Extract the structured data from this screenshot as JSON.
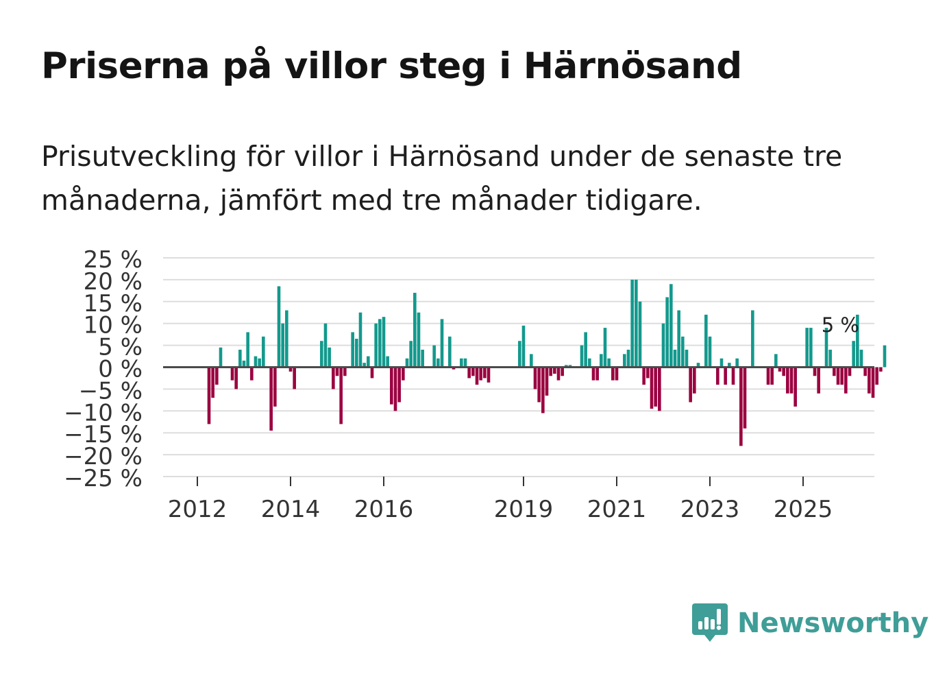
{
  "title": "Priserna på villor steg i Härnösand",
  "subtitle": "Prisutveckling för villor i Härnösand under de senaste tre månaderna, jämfört med tre månader tidigare.",
  "brand": {
    "name": "Newsworthy",
    "color": "#3f9e97",
    "icon": "newsworthy-logo-icon"
  },
  "colors": {
    "positive": "#13998d",
    "negative": "#9b0140",
    "grid": "#dddddd",
    "zero_line": "#4a4a4a"
  },
  "chart_data": {
    "type": "bar",
    "title": "Priserna på villor steg i Härnösand",
    "xlabel": "",
    "ylabel": "",
    "ylim": [
      -25,
      25
    ],
    "y_ticks": [
      {
        "value": 25,
        "label": "25 %"
      },
      {
        "value": 20,
        "label": "20 %"
      },
      {
        "value": 15,
        "label": "15 %"
      },
      {
        "value": 10,
        "label": "10 %"
      },
      {
        "value": 5,
        "label": "5 %"
      },
      {
        "value": 0,
        "label": "0 %"
      },
      {
        "value": -5,
        "label": "−5 %"
      },
      {
        "value": -10,
        "label": "−10 %"
      },
      {
        "value": -15,
        "label": "−15 %"
      },
      {
        "value": -20,
        "label": "−20 %"
      },
      {
        "value": -25,
        "label": "−25 %"
      }
    ],
    "x_ticks": [
      {
        "year": 2012,
        "label": "2012"
      },
      {
        "year": 2014,
        "label": "2014"
      },
      {
        "year": 2016,
        "label": "2016"
      },
      {
        "year": 2019,
        "label": "2019"
      },
      {
        "year": 2021,
        "label": "2021"
      },
      {
        "year": 2023,
        "label": "2023"
      },
      {
        "year": 2025,
        "label": "2025"
      }
    ],
    "start": {
      "year": 2011,
      "month": 7
    },
    "unit": "%",
    "annotation": {
      "label": "5 %",
      "value": 5
    },
    "values": [
      0,
      0,
      0,
      0,
      0,
      0,
      0,
      0,
      0,
      -13,
      -7,
      -4,
      4.5,
      0,
      0,
      -3,
      -5,
      4,
      1.5,
      8,
      -3,
      2.5,
      2,
      7,
      0,
      -14.5,
      -9,
      18.5,
      10,
      13,
      -1,
      -5,
      0,
      0,
      0,
      0,
      0,
      0,
      6,
      10,
      4.5,
      -5,
      -2,
      -13,
      -2,
      0,
      8,
      6.5,
      12.5,
      1,
      2.5,
      -2.5,
      10,
      11,
      11.5,
      2.5,
      -8.5,
      -10,
      -8,
      -3,
      2,
      6,
      17,
      12.5,
      4,
      0,
      0,
      5,
      2,
      11,
      0,
      7,
      -0.5,
      0,
      2,
      2,
      -2.5,
      -2,
      -4,
      -3,
      -2.5,
      -3.5,
      0,
      0,
      0,
      0,
      0,
      0,
      0,
      6,
      9.5,
      0,
      3,
      -5,
      -8,
      -10.5,
      -6.5,
      -2,
      -1.5,
      -3,
      -2,
      0.5,
      0.5,
      0,
      0,
      5,
      8,
      2,
      -3,
      -3,
      3,
      9,
      2,
      -3,
      -3,
      0,
      3,
      4,
      20,
      20,
      15,
      -4,
      -2.5,
      -9.5,
      -9,
      -10,
      10,
      16,
      19,
      4,
      13,
      7,
      4,
      -8,
      -6,
      1,
      0,
      12,
      7,
      0,
      -4,
      2,
      -4,
      1,
      -4,
      2,
      -18,
      -14,
      0,
      13,
      0,
      0,
      0,
      -4,
      -4,
      3,
      -1,
      -2,
      -6,
      -6,
      -9,
      0,
      0,
      9,
      9,
      -2,
      -6,
      0,
      9,
      4,
      -2,
      -4,
      -4,
      -6,
      -2,
      6,
      12,
      4,
      -2,
      -6,
      -7,
      -4,
      -1,
      5
    ]
  }
}
